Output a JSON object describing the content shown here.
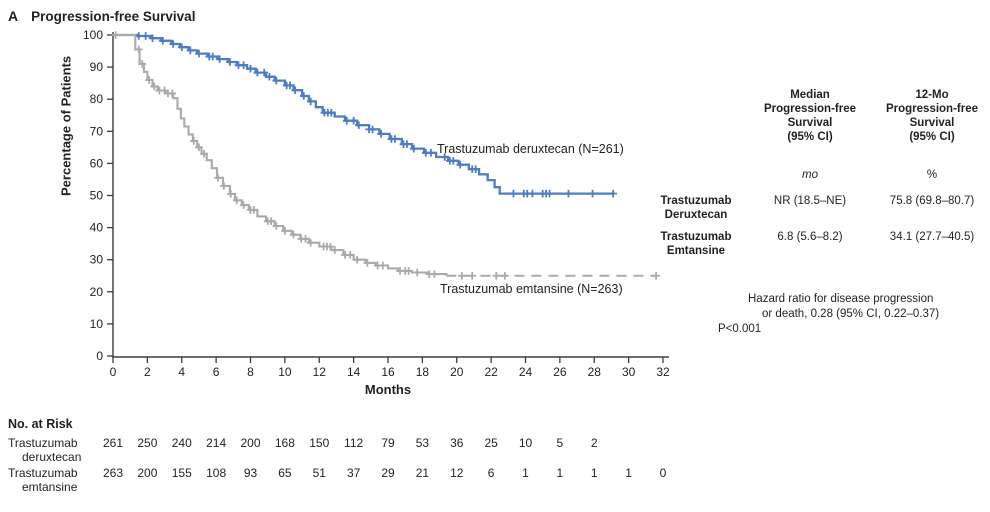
{
  "header": {
    "panel_letter": "A",
    "title": "Progression-free Survival"
  },
  "chart_data": {
    "type": "line",
    "subtype": "kaplan_meier_step",
    "title": "Progression-free Survival",
    "xlabel": "Months",
    "ylabel": "Percentage of Patients",
    "xlim": [
      0,
      32
    ],
    "ylim": [
      0,
      100
    ],
    "x_ticks": [
      0,
      2,
      4,
      6,
      8,
      10,
      12,
      14,
      16,
      18,
      20,
      22,
      24,
      26,
      28,
      30,
      32
    ],
    "y_ticks": [
      0,
      10,
      20,
      30,
      40,
      50,
      60,
      70,
      80,
      90,
      100
    ],
    "grid": false,
    "legend_position": "annotations-on-plot",
    "axis_color": "#3b3b3c",
    "series": [
      {
        "name": "Trastuzumab deruxtecan",
        "n": 261,
        "annotation": "Trastuzumab deruxtecan (N=261)",
        "color": "#4f7dbe",
        "line_style": "solid",
        "steps": [
          [
            0,
            100
          ],
          [
            1.4,
            99.7
          ],
          [
            2.2,
            99
          ],
          [
            2.8,
            98.2
          ],
          [
            3.4,
            97.2
          ],
          [
            3.9,
            96.2
          ],
          [
            4.4,
            95.2
          ],
          [
            4.9,
            94.2
          ],
          [
            5.5,
            93.3
          ],
          [
            6.1,
            92.5
          ],
          [
            6.7,
            91.6
          ],
          [
            7.2,
            90.6
          ],
          [
            7.8,
            89.5
          ],
          [
            8.3,
            88.3
          ],
          [
            8.9,
            87
          ],
          [
            9.4,
            85.8
          ],
          [
            10,
            84.3
          ],
          [
            10.5,
            82.8
          ],
          [
            11,
            81
          ],
          [
            11.4,
            79.3
          ],
          [
            11.8,
            77.5
          ],
          [
            12.2,
            75.8
          ],
          [
            12.9,
            74.6
          ],
          [
            13.5,
            73.3
          ],
          [
            14.2,
            71.9
          ],
          [
            14.9,
            70.6
          ],
          [
            15.5,
            69.2
          ],
          [
            16.1,
            67.6
          ],
          [
            16.8,
            66
          ],
          [
            17.4,
            64.6
          ],
          [
            18.1,
            63.3
          ],
          [
            18.8,
            62
          ],
          [
            19.5,
            60.8
          ],
          [
            20.1,
            59.6
          ],
          [
            20.7,
            58.2
          ],
          [
            21.3,
            56.6
          ],
          [
            21.8,
            54.8
          ],
          [
            22.2,
            52.6
          ],
          [
            22.5,
            50.6
          ],
          [
            29.1,
            50.6
          ]
        ],
        "censor_months": [
          1.5,
          1.9,
          2.3,
          2.9,
          3.5,
          4.0,
          4.5,
          5.0,
          5.6,
          5.8,
          6.2,
          6.8,
          7.3,
          7.6,
          8.0,
          8.4,
          8.8,
          9.1,
          9.5,
          10.1,
          10.3,
          10.6,
          11.1,
          11.5,
          12.3,
          12.5,
          12.7,
          13.6,
          14.0,
          14.3,
          14.9,
          15.1,
          15.6,
          16.2,
          16.4,
          16.9,
          17.1,
          17.5,
          18.2,
          18.5,
          19.3,
          19.6,
          19.8,
          20.2,
          20.9,
          21.1,
          23.3,
          23.9,
          24.1,
          24.4,
          25.0,
          25.2,
          25.4,
          26.5,
          27.9,
          29.1
        ],
        "dashed_tail_from": null
      },
      {
        "name": "Trastuzumab emtansine",
        "n": 263,
        "annotation": "Trastuzumab emtansine (N=263)",
        "color": "#a8aaad",
        "line_style": "solid-then-dashed",
        "steps": [
          [
            0,
            100
          ],
          [
            1.3,
            95.5
          ],
          [
            1.55,
            91
          ],
          [
            1.8,
            88.5
          ],
          [
            2.0,
            86
          ],
          [
            2.3,
            84
          ],
          [
            2.6,
            82.7
          ],
          [
            3.1,
            81.8
          ],
          [
            3.5,
            80.3
          ],
          [
            3.75,
            77
          ],
          [
            3.95,
            74
          ],
          [
            4.15,
            71.5
          ],
          [
            4.4,
            69
          ],
          [
            4.65,
            67
          ],
          [
            4.9,
            65
          ],
          [
            5.15,
            63
          ],
          [
            5.45,
            61
          ],
          [
            5.75,
            58.5
          ],
          [
            6.05,
            55.5
          ],
          [
            6.4,
            53
          ],
          [
            6.8,
            50.5
          ],
          [
            7.1,
            48.5
          ],
          [
            7.5,
            47
          ],
          [
            7.9,
            45.5
          ],
          [
            8.4,
            43.5
          ],
          [
            8.9,
            42
          ],
          [
            9.4,
            40.5
          ],
          [
            9.9,
            39
          ],
          [
            10.4,
            37.8
          ],
          [
            10.9,
            36.5
          ],
          [
            11.4,
            35.3
          ],
          [
            12,
            34.1
          ],
          [
            12.7,
            33
          ],
          [
            13.4,
            31.5
          ],
          [
            14,
            30
          ],
          [
            14.7,
            29
          ],
          [
            15.3,
            28.2
          ],
          [
            16,
            27.3
          ],
          [
            16.6,
            26.5
          ],
          [
            17.4,
            26
          ],
          [
            18.3,
            25.5
          ],
          [
            19.4,
            25
          ],
          [
            31.6,
            25
          ]
        ],
        "censor_months": [
          0.15,
          1.5,
          1.7,
          2.1,
          2.4,
          2.7,
          3.0,
          3.2,
          3.45,
          4.7,
          5.0,
          5.3,
          6.1,
          6.45,
          6.85,
          7.2,
          7.6,
          8.0,
          8.2,
          9.0,
          9.2,
          9.5,
          10.0,
          10.5,
          10.95,
          11.2,
          11.5,
          12.25,
          12.45,
          12.65,
          12.9,
          13.5,
          13.8,
          14.2,
          14.8,
          15.4,
          15.7,
          16.7,
          17.0,
          17.2,
          17.7,
          18.4,
          18.7,
          20.3,
          20.9,
          22.3,
          22.8,
          31.6
        ],
        "dashed_tail_from": 19.4
      }
    ]
  },
  "stats_table": {
    "columns": [
      {
        "header_lines": [
          "Median",
          "Progression-free",
          "Survival",
          "(95% CI)"
        ],
        "unit": "mo"
      },
      {
        "header_lines": [
          "12-Mo",
          "Progression-free",
          "Survival",
          "(95% CI)"
        ],
        "unit": "%"
      }
    ],
    "rows": [
      {
        "label_lines": [
          "Trastuzumab",
          "Deruxtecan"
        ],
        "values": [
          "NR (18.5–NE)",
          "75.8 (69.8–80.7)"
        ]
      },
      {
        "label_lines": [
          "Trastuzumab",
          "Emtansine"
        ],
        "values": [
          "6.8 (5.6–8.2)",
          "34.1 (27.7–40.5)"
        ]
      }
    ]
  },
  "hazard_note": {
    "lines": [
      "Hazard ratio for disease progression",
      "or death, 0.28 (95% CI, 0.22–0.37)",
      "P<0.001"
    ]
  },
  "risk_table": {
    "title": "No. at Risk",
    "interval_months": 2,
    "rows": [
      {
        "label_lines": [
          "Trastuzumab",
          "deruxtecan"
        ],
        "values": [
          261,
          250,
          240,
          214,
          200,
          168,
          150,
          112,
          79,
          53,
          36,
          25,
          10,
          5,
          2
        ]
      },
      {
        "label_lines": [
          "Trastuzumab",
          "emtansine"
        ],
        "values": [
          263,
          200,
          155,
          108,
          93,
          65,
          51,
          37,
          29,
          21,
          12,
          6,
          1,
          1,
          1,
          1,
          0
        ]
      }
    ]
  }
}
